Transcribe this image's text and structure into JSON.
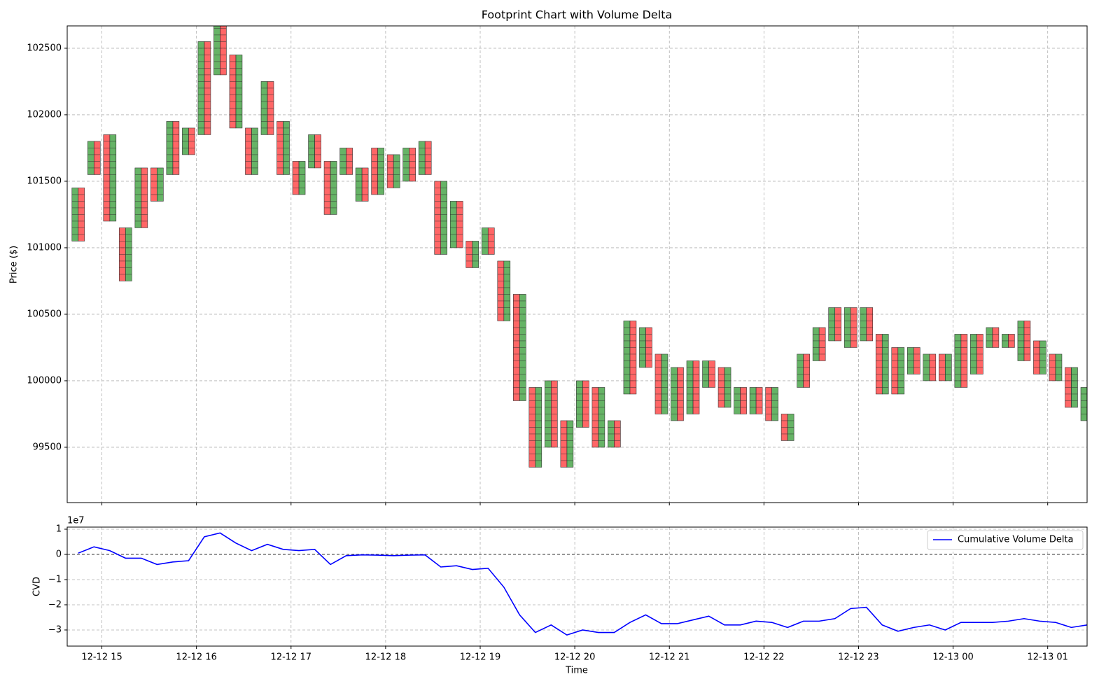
{
  "chart_data": [
    {
      "type": "footprint",
      "title": "Footprint Chart with Volume Delta",
      "ylabel": "Price ($)",
      "x": [
        "12-12 14:45",
        "12-12 14:55",
        "12-12 15:05",
        "12-12 15:15",
        "12-12 15:25",
        "12-12 15:35",
        "12-12 15:45",
        "12-12 15:55",
        "12-12 16:05",
        "12-12 16:15",
        "12-12 16:25",
        "12-12 16:35",
        "12-12 16:45",
        "12-12 16:55",
        "12-12 17:05",
        "12-12 17:15",
        "12-12 17:25",
        "12-12 17:35",
        "12-12 17:45",
        "12-12 17:55",
        "12-12 18:05",
        "12-12 18:15",
        "12-12 18:25",
        "12-12 18:35",
        "12-12 18:45",
        "12-12 18:55",
        "12-12 19:05",
        "12-12 19:15",
        "12-12 19:25",
        "12-12 19:35",
        "12-12 19:45",
        "12-12 19:55",
        "12-12 20:05",
        "12-12 20:15",
        "12-12 20:25",
        "12-12 20:35",
        "12-12 20:45",
        "12-12 20:55",
        "12-12 21:05",
        "12-12 21:15",
        "12-12 21:25",
        "12-12 21:35",
        "12-12 21:45",
        "12-12 21:55",
        "12-12 22:05",
        "12-12 22:15",
        "12-12 22:25",
        "12-12 22:35",
        "12-12 22:45",
        "12-12 22:55",
        "12-12 23:05",
        "12-12 23:15",
        "12-12 23:25",
        "12-12 23:35",
        "12-12 23:45",
        "12-12 23:55",
        "12-13 00:05",
        "12-13 00:15",
        "12-13 00:25",
        "12-13 00:35",
        "12-13 00:45",
        "12-13 00:55",
        "12-13 01:05",
        "12-13 01:15",
        "12-13 01:25"
      ],
      "high": [
        101450,
        101800,
        101850,
        101150,
        101600,
        101600,
        101950,
        101900,
        102550,
        102700,
        102450,
        101900,
        102250,
        101950,
        101650,
        101850,
        101650,
        101750,
        101600,
        101750,
        101700,
        101750,
        101800,
        101500,
        101350,
        101050,
        101150,
        100900,
        100650,
        99950,
        100000,
        99700,
        100000,
        99950,
        99700,
        100450,
        100400,
        100200,
        100100,
        100150,
        100150,
        100100,
        99950,
        99950,
        99950,
        99750,
        100200,
        100400,
        100550,
        100550,
        100550,
        100350,
        100250,
        100250,
        100200,
        100200,
        100350,
        100350,
        100400,
        100350,
        100450,
        100300,
        100200,
        100100,
        99950
      ],
      "low": [
        101050,
        101550,
        101200,
        100750,
        101150,
        101350,
        101550,
        101700,
        101850,
        102300,
        101900,
        101550,
        101850,
        101550,
        101400,
        101600,
        101250,
        101550,
        101350,
        101400,
        101450,
        101500,
        101550,
        100950,
        101000,
        100850,
        100950,
        100450,
        99850,
        99350,
        99500,
        99350,
        99650,
        99500,
        99500,
        99900,
        100100,
        99750,
        99700,
        99750,
        99950,
        99800,
        99750,
        99750,
        99700,
        99550,
        99950,
        100150,
        100300,
        100250,
        100300,
        99900,
        99900,
        100050,
        100000,
        100000,
        99950,
        100050,
        100250,
        100250,
        100150,
        100050,
        100000,
        99800,
        99700
      ],
      "xlim": [
        "12-12 14:38",
        "12-13 01:25"
      ],
      "xticks": [
        "12-12 15:00",
        "12-12 16:00",
        "12-12 17:00",
        "12-12 18:00",
        "12-12 19:00",
        "12-12 20:00",
        "12-12 21:00",
        "12-12 22:00",
        "12-12 23:00",
        "12-13 00:00",
        "12-13 01:00"
      ],
      "ylim": [
        99084,
        102668
      ],
      "yticks": [
        99500,
        100000,
        100500,
        101000,
        101500,
        102000,
        102500
      ],
      "grid": true,
      "buy_color": "green",
      "sell_color": "red"
    },
    {
      "type": "line",
      "xlabel": "Time",
      "ylabel": "CVD",
      "offset_text": "1e7",
      "x": [
        "12-12 14:45",
        "12-12 14:55",
        "12-12 15:05",
        "12-12 15:15",
        "12-12 15:25",
        "12-12 15:35",
        "12-12 15:45",
        "12-12 15:55",
        "12-12 16:05",
        "12-12 16:15",
        "12-12 16:25",
        "12-12 16:35",
        "12-12 16:45",
        "12-12 16:55",
        "12-12 17:05",
        "12-12 17:15",
        "12-12 17:25",
        "12-12 17:35",
        "12-12 17:45",
        "12-12 17:55",
        "12-12 18:05",
        "12-12 18:15",
        "12-12 18:25",
        "12-12 18:35",
        "12-12 18:45",
        "12-12 18:55",
        "12-12 19:05",
        "12-12 19:15",
        "12-12 19:25",
        "12-12 19:35",
        "12-12 19:45",
        "12-12 19:55",
        "12-12 20:05",
        "12-12 20:15",
        "12-12 20:25",
        "12-12 20:35",
        "12-12 20:45",
        "12-12 20:55",
        "12-12 21:05",
        "12-12 21:15",
        "12-12 21:25",
        "12-12 21:35",
        "12-12 21:45",
        "12-12 21:55",
        "12-12 22:05",
        "12-12 22:15",
        "12-12 22:25",
        "12-12 22:35",
        "12-12 22:45",
        "12-12 22:55",
        "12-12 23:05",
        "12-12 23:15",
        "12-12 23:25",
        "12-12 23:35",
        "12-12 23:45",
        "12-12 23:55",
        "12-13 00:05",
        "12-13 00:15",
        "12-13 00:25",
        "12-13 00:35",
        "12-13 00:45",
        "12-13 00:55",
        "12-13 01:05",
        "12-13 01:15",
        "12-13 01:25"
      ],
      "series": [
        {
          "name": "Cumulative Volume Delta",
          "color": "blue",
          "values": [
            500000,
            3000000,
            1500000,
            -1500000,
            -1500000,
            -4000000,
            -3000000,
            -2500000,
            7000000,
            8500000,
            4500000,
            1500000,
            4000000,
            2000000,
            1500000,
            2000000,
            -4000000,
            -500000,
            -200000,
            -300000,
            -500000,
            -300000,
            -200000,
            -5000000,
            -4500000,
            -6000000,
            -5500000,
            -13000000,
            -24000000,
            -31000000,
            -28000000,
            -32000000,
            -30000000,
            -31000000,
            -31000000,
            -27000000,
            -24000000,
            -27500000,
            -27500000,
            -26000000,
            -24500000,
            -28000000,
            -28000000,
            -26500000,
            -27000000,
            -29000000,
            -26500000,
            -26500000,
            -25500000,
            -21500000,
            -21000000,
            -28000000,
            -30500000,
            -29000000,
            -28000000,
            -30000000,
            -27000000,
            -27000000,
            -27000000,
            -26500000,
            -25500000,
            -26500000,
            -27000000,
            -29000000,
            -28000000
          ]
        }
      ],
      "xlim": [
        "12-12 14:38",
        "12-13 01:25"
      ],
      "xticks": [
        {
          "value": "12-12 15:00",
          "label": "12-12 15"
        },
        {
          "value": "12-12 16:00",
          "label": "12-12 16"
        },
        {
          "value": "12-12 17:00",
          "label": "12-12 17"
        },
        {
          "value": "12-12 18:00",
          "label": "12-12 18"
        },
        {
          "value": "12-12 19:00",
          "label": "12-12 19"
        },
        {
          "value": "12-12 20:00",
          "label": "12-12 20"
        },
        {
          "value": "12-12 21:00",
          "label": "12-12 21"
        },
        {
          "value": "12-12 22:00",
          "label": "12-12 22"
        },
        {
          "value": "12-12 23:00",
          "label": "12-12 23"
        },
        {
          "value": "12-13 00:00",
          "label": "12-13 00"
        },
        {
          "value": "12-13 01:00",
          "label": "12-13 01"
        }
      ],
      "ylim": [
        -36400000,
        10833333
      ],
      "yticks": [
        {
          "value": -30000000,
          "label": "−3"
        },
        {
          "value": -20000000,
          "label": "−2"
        },
        {
          "value": -10000000,
          "label": "−1"
        },
        {
          "value": 0,
          "label": "0"
        },
        {
          "value": 10000000,
          "label": "1"
        }
      ],
      "grid": true,
      "zero_line": true,
      "legend": "upper-right"
    }
  ]
}
